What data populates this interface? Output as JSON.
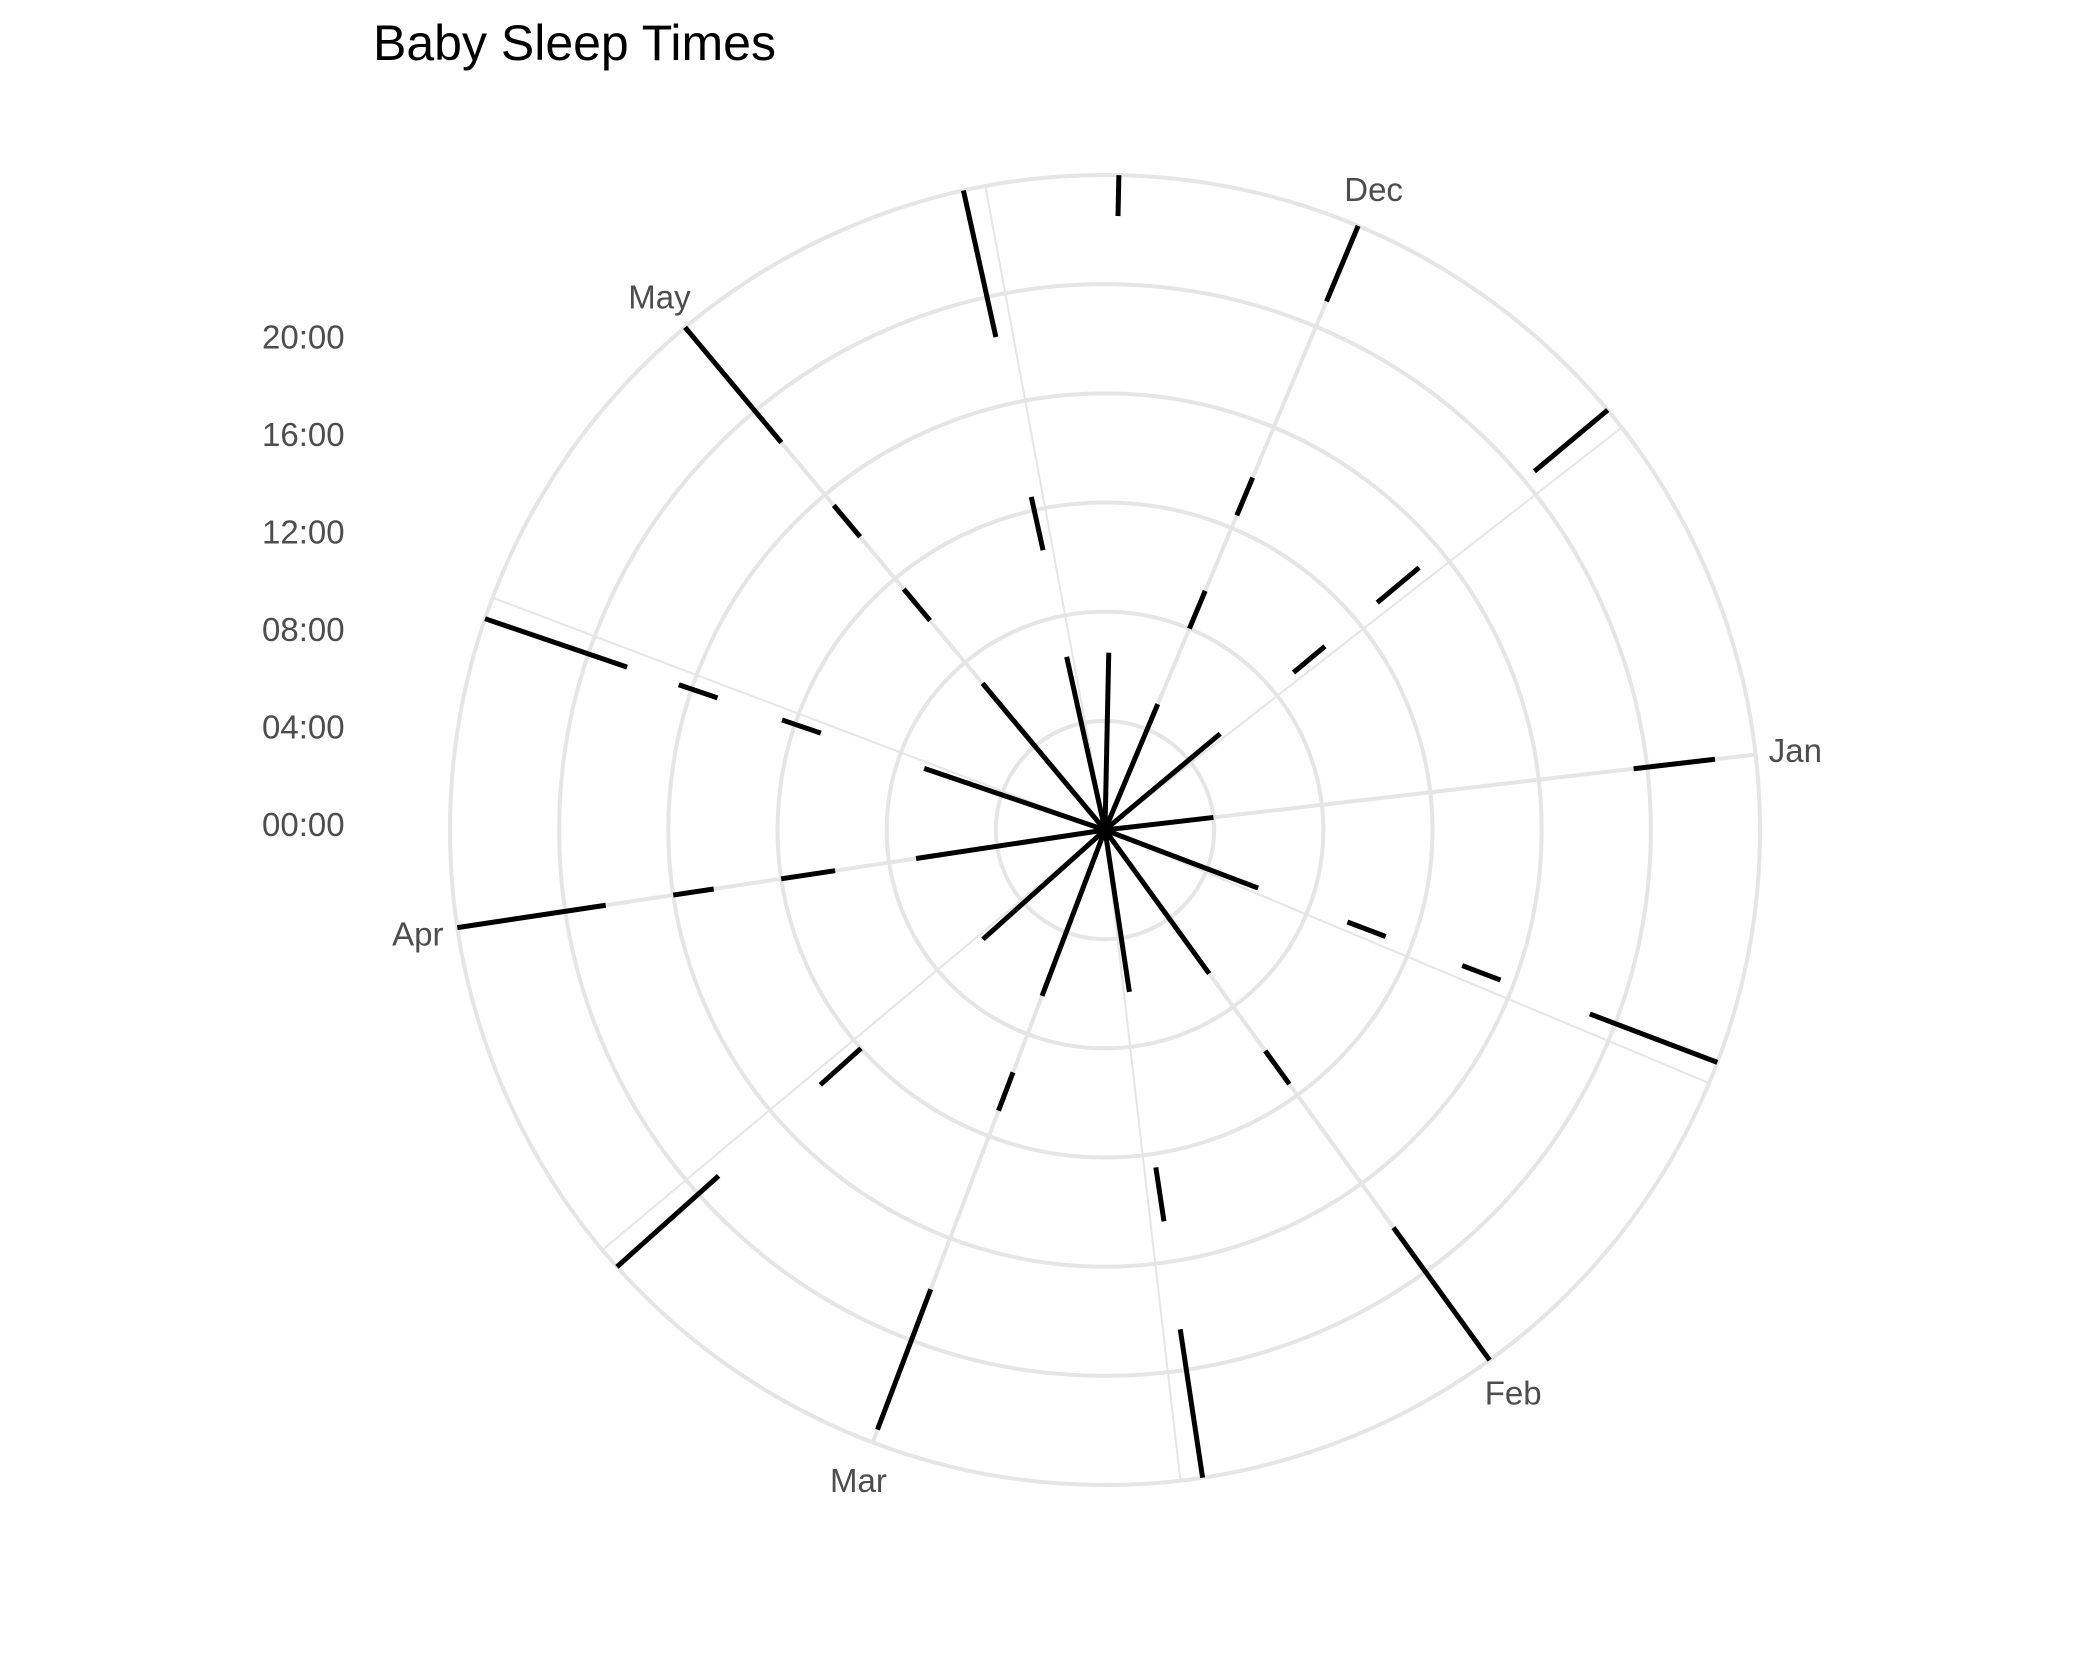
{
  "chart_data": {
    "type": "polar-bar",
    "title": "Baby Sleep Times",
    "xlabel": "",
    "ylabel": "",
    "angular_axis": {
      "unit": "date",
      "start": "2019-11-18",
      "end": "2020-05-20",
      "tick_labels": [
        {
          "label": "Dec",
          "date": "2019-12-01"
        },
        {
          "label": "Jan",
          "date": "2020-01-01"
        },
        {
          "label": "Feb",
          "date": "2020-02-01"
        },
        {
          "label": "Mar",
          "date": "2020-03-01"
        },
        {
          "label": "Apr",
          "date": "2020-04-01"
        },
        {
          "label": "May",
          "date": "2020-05-01"
        }
      ]
    },
    "radial_axis": {
      "unit": "time of day",
      "range": [
        "00:00",
        "24:00"
      ],
      "tick_labels": [
        "00:00",
        "04:00",
        "08:00",
        "12:00",
        "16:00",
        "20:00"
      ]
    },
    "grid": true,
    "legend": "none",
    "bar_color": "#000000",
    "grid_color": "#e5e5e5",
    "series": [
      {
        "note": "sleep intervals per day as [start_hour, end_hour]",
        "days": [
          {
            "date": "2019-11-20",
            "sleeps": [
              [
                0.0,
                6.5
              ],
              [
                22.5,
                24.0
              ]
            ]
          },
          {
            "date": "2019-12-01",
            "sleeps": [
              [
                0.0,
                5.0
              ],
              [
                8.0,
                9.5
              ],
              [
                12.5,
                14.0
              ],
              [
                21.0,
                24.0
              ]
            ]
          },
          {
            "date": "2019-12-15",
            "sleeps": [
              [
                0.0,
                5.5
              ],
              [
                9.0,
                10.5
              ],
              [
                13.0,
                15.0
              ],
              [
                20.5,
                24.0
              ]
            ]
          },
          {
            "date": "2020-01-01",
            "sleeps": [
              [
                0.0,
                4.0
              ],
              [
                19.5,
                22.5
              ]
            ]
          },
          {
            "date": "2020-01-15",
            "sleeps": [
              [
                0.0,
                6.0
              ],
              [
                9.5,
                11.0
              ],
              [
                14.0,
                15.5
              ],
              [
                19.0,
                24.0
              ]
            ]
          },
          {
            "date": "2020-02-01",
            "sleeps": [
              [
                0.0,
                6.5
              ],
              [
                10.0,
                11.5
              ],
              [
                18.0,
                24.0
              ]
            ]
          },
          {
            "date": "2020-02-15",
            "sleeps": [
              [
                0.0,
                6.0
              ],
              [
                12.5,
                14.5
              ],
              [
                18.5,
                24.0
              ]
            ]
          },
          {
            "date": "2020-03-01",
            "sleeps": [
              [
                0.0,
                6.5
              ],
              [
                9.5,
                11.0
              ],
              [
                18.0,
                23.5
              ]
            ]
          },
          {
            "date": "2020-03-15",
            "sleeps": [
              [
                0.0,
                6.0
              ],
              [
                12.0,
                14.0
              ],
              [
                19.0,
                24.0
              ]
            ]
          },
          {
            "date": "2020-04-01",
            "sleeps": [
              [
                0.0,
                7.0
              ],
              [
                10.0,
                12.0
              ],
              [
                14.5,
                16.0
              ],
              [
                18.5,
                24.0
              ]
            ]
          },
          {
            "date": "2020-04-15",
            "sleeps": [
              [
                0.0,
                7.0
              ],
              [
                11.0,
                12.5
              ],
              [
                15.0,
                16.5
              ],
              [
                18.5,
                24.0
              ]
            ]
          },
          {
            "date": "2020-05-01",
            "sleeps": [
              [
                0.0,
                7.0
              ],
              [
                10.0,
                11.5
              ],
              [
                14.0,
                15.5
              ],
              [
                18.5,
                24.0
              ]
            ]
          },
          {
            "date": "2020-05-15",
            "sleeps": [
              [
                0.0,
                6.5
              ],
              [
                10.5,
                12.5
              ],
              [
                18.5,
                24.0
              ]
            ]
          }
        ]
      }
    ]
  }
}
